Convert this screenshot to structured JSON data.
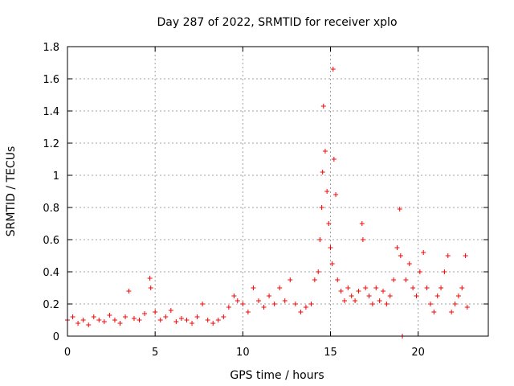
{
  "chart_data": {
    "type": "scatter",
    "title": "Day 287 of 2022, SRMTID for receiver xplo",
    "xlabel": "GPS time / hours",
    "ylabel": "SRMTID / TECUs",
    "xlim": [
      0,
      24
    ],
    "ylim": [
      0,
      1.8
    ],
    "x_ticks": [
      0,
      5,
      10,
      15,
      20
    ],
    "x_tick_labels": [
      "0",
      "5",
      "10",
      "15",
      "20"
    ],
    "y_ticks": [
      0,
      0.2,
      0.4,
      0.6,
      0.8,
      1.0,
      1.2,
      1.4,
      1.6,
      1.8
    ],
    "y_tick_labels": [
      "0",
      "0.2",
      "0.4",
      "0.6",
      "0.8",
      "1",
      "1.2",
      "1.4",
      "1.6",
      "1.8"
    ],
    "grid": true,
    "marker": "plus",
    "series": [
      {
        "name": "SRMTID",
        "color": "#ff0000",
        "x": [
          0.0,
          0.3,
          0.6,
          0.9,
          1.2,
          1.5,
          1.8,
          2.1,
          2.4,
          2.7,
          3.0,
          3.3,
          3.5,
          3.8,
          4.1,
          4.4,
          4.7,
          4.75,
          5.0,
          5.3,
          5.6,
          5.9,
          6.2,
          6.5,
          6.8,
          7.1,
          7.4,
          7.7,
          8.0,
          8.3,
          8.6,
          8.9,
          9.2,
          9.5,
          9.7,
          10.0,
          10.3,
          10.6,
          10.9,
          11.2,
          11.5,
          11.8,
          12.1,
          12.4,
          12.7,
          13.0,
          13.3,
          13.6,
          13.9,
          14.1,
          14.3,
          14.4,
          14.5,
          14.55,
          14.6,
          14.7,
          14.8,
          14.9,
          15.0,
          15.1,
          15.15,
          15.2,
          15.3,
          15.4,
          15.6,
          15.8,
          16.0,
          16.2,
          16.4,
          16.6,
          16.8,
          16.85,
          17.0,
          17.2,
          17.4,
          17.6,
          17.8,
          18.0,
          18.2,
          18.4,
          18.6,
          18.8,
          18.95,
          19.0,
          19.1,
          19.3,
          19.5,
          19.7,
          19.9,
          20.1,
          20.3,
          20.5,
          20.7,
          20.9,
          21.1,
          21.3,
          21.5,
          21.7,
          21.9,
          22.1,
          22.3,
          22.5,
          22.7,
          22.8
        ],
        "y": [
          0.1,
          0.12,
          0.08,
          0.1,
          0.07,
          0.12,
          0.1,
          0.09,
          0.13,
          0.1,
          0.08,
          0.12,
          0.28,
          0.11,
          0.1,
          0.14,
          0.36,
          0.3,
          0.15,
          0.1,
          0.12,
          0.16,
          0.09,
          0.11,
          0.1,
          0.08,
          0.12,
          0.2,
          0.1,
          0.08,
          0.1,
          0.12,
          0.18,
          0.25,
          0.22,
          0.2,
          0.15,
          0.3,
          0.22,
          0.18,
          0.25,
          0.2,
          0.3,
          0.22,
          0.35,
          0.2,
          0.15,
          0.18,
          0.2,
          0.35,
          0.4,
          0.6,
          0.8,
          1.02,
          1.43,
          1.15,
          0.9,
          0.7,
          0.55,
          0.45,
          1.66,
          1.1,
          0.88,
          0.35,
          0.28,
          0.22,
          0.3,
          0.25,
          0.22,
          0.28,
          0.7,
          0.6,
          0.3,
          0.25,
          0.2,
          0.3,
          0.22,
          0.28,
          0.2,
          0.25,
          0.35,
          0.55,
          0.79,
          0.5,
          0.0,
          0.35,
          0.45,
          0.3,
          0.25,
          0.4,
          0.52,
          0.3,
          0.2,
          0.15,
          0.25,
          0.3,
          0.4,
          0.5,
          0.15,
          0.2,
          0.25,
          0.3,
          0.5,
          0.18
        ]
      }
    ]
  }
}
